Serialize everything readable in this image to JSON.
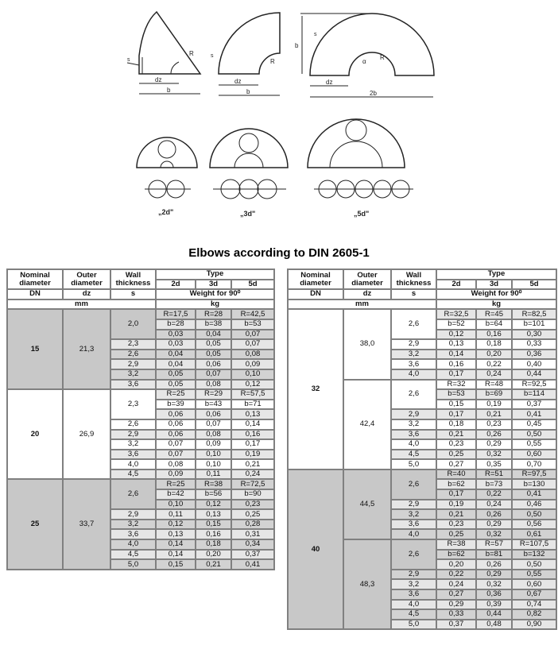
{
  "title": "Elbows according to DIN 2605-1",
  "drawing_labels": {
    "s": "s",
    "R": "R",
    "dz": "dz",
    "b": "b",
    "b2": "2b",
    "alpha": "α",
    "type2": "„2d\"",
    "type3": "„3d\"",
    "type5": "„5d\""
  },
  "header": {
    "nominal": "Nominal diameter",
    "outer": "Outer diameter",
    "wall": "Wall thickness",
    "type": "Type",
    "t2": "2d",
    "t3": "3d",
    "t5": "5d",
    "dn": "DN",
    "dz": "dz",
    "s": "s",
    "weight": "Weight for 90⁰",
    "mm": "mm",
    "kg": "kg"
  },
  "tables": [
    {
      "groups": [
        {
          "dn": "15",
          "shade": "gray",
          "dz_groups": [
            {
              "dz": "21,3",
              "rows": [
                {
                  "s": "2,0",
                  "R": [
                    "R=17,5",
                    "R=28",
                    "R=42,5"
                  ],
                  "b": [
                    "b=28",
                    "b=38",
                    "b=53"
                  ],
                  "w": [
                    "0,03",
                    "0,04",
                    "0,07"
                  ]
                },
                {
                  "s": "2,3",
                  "w": [
                    "0,03",
                    "0,05",
                    "0,07"
                  ]
                },
                {
                  "s": "2,6",
                  "w": [
                    "0,04",
                    "0,05",
                    "0,08"
                  ]
                },
                {
                  "s": "2,9",
                  "w": [
                    "0,04",
                    "0,06",
                    "0,09"
                  ]
                },
                {
                  "s": "3,2",
                  "w": [
                    "0,05",
                    "0,07",
                    "0,10"
                  ]
                },
                {
                  "s": "3,6",
                  "w": [
                    "0,05",
                    "0,08",
                    "0,12"
                  ]
                }
              ]
            }
          ]
        },
        {
          "dn": "20",
          "shade": "white",
          "dz_groups": [
            {
              "dz": "26,9",
              "rows": [
                {
                  "s": "2,3",
                  "R": [
                    "R=25",
                    "R=29",
                    "R=57,5"
                  ],
                  "b": [
                    "b=39",
                    "b=43",
                    "b=71"
                  ],
                  "w": [
                    "0,06",
                    "0,06",
                    "0,13"
                  ]
                },
                {
                  "s": "2,6",
                  "w": [
                    "0,06",
                    "0,07",
                    "0,14"
                  ]
                },
                {
                  "s": "2,9",
                  "w": [
                    "0,06",
                    "0,08",
                    "0,16"
                  ]
                },
                {
                  "s": "3,2",
                  "w": [
                    "0,07",
                    "0,09",
                    "0,17"
                  ]
                },
                {
                  "s": "3,6",
                  "w": [
                    "0,07",
                    "0,10",
                    "0,19"
                  ]
                },
                {
                  "s": "4,0",
                  "w": [
                    "0,08",
                    "0,10",
                    "0,21"
                  ]
                },
                {
                  "s": "4,5",
                  "w": [
                    "0,09",
                    "0,11",
                    "0,24"
                  ]
                }
              ]
            }
          ]
        },
        {
          "dn": "25",
          "shade": "gray",
          "dz_groups": [
            {
              "dz": "33,7",
              "rows": [
                {
                  "s": "2,6",
                  "R": [
                    "R=25",
                    "R=38",
                    "R=72,5"
                  ],
                  "b": [
                    "b=42",
                    "b=56",
                    "b=90"
                  ],
                  "w": [
                    "0,10",
                    "0,12",
                    "0,23"
                  ]
                },
                {
                  "s": "2,9",
                  "w": [
                    "0,11",
                    "0,13",
                    "0,25"
                  ]
                },
                {
                  "s": "3,2",
                  "w": [
                    "0,12",
                    "0,15",
                    "0,28"
                  ]
                },
                {
                  "s": "3,6",
                  "w": [
                    "0,13",
                    "0,16",
                    "0,31"
                  ]
                },
                {
                  "s": "4,0",
                  "w": [
                    "0,14",
                    "0,18",
                    "0,34"
                  ]
                },
                {
                  "s": "4,5",
                  "w": [
                    "0,14",
                    "0,20",
                    "0,37"
                  ]
                },
                {
                  "s": "5,0",
                  "w": [
                    "0,15",
                    "0,21",
                    "0,41"
                  ]
                }
              ]
            }
          ]
        }
      ]
    },
    {
      "groups": [
        {
          "dn": "32",
          "shade": "white",
          "dz_groups": [
            {
              "dz": "38,0",
              "rows": [
                {
                  "s": "2,6",
                  "R": [
                    "R=32,5",
                    "R=45",
                    "R=82,5"
                  ],
                  "b": [
                    "b=52",
                    "b=64",
                    "b=101"
                  ],
                  "w": [
                    "0,12",
                    "0,16",
                    "0,30"
                  ]
                },
                {
                  "s": "2,9",
                  "w": [
                    "0,13",
                    "0,18",
                    "0,33"
                  ]
                },
                {
                  "s": "3,2",
                  "w": [
                    "0,14",
                    "0,20",
                    "0,36"
                  ]
                },
                {
                  "s": "3,6",
                  "w": [
                    "0,16",
                    "0,22",
                    "0,40"
                  ]
                },
                {
                  "s": "4,0",
                  "w": [
                    "0,17",
                    "0,24",
                    "0,44"
                  ]
                }
              ]
            },
            {
              "dz": "42,4",
              "rows": [
                {
                  "s": "2,6",
                  "R": [
                    "R=32",
                    "R=48",
                    "R=92,5"
                  ],
                  "b": [
                    "b=53",
                    "b=69",
                    "b=114"
                  ],
                  "w": [
                    "0,15",
                    "0,19",
                    "0,37"
                  ]
                },
                {
                  "s": "2,9",
                  "w": [
                    "0,17",
                    "0,21",
                    "0,41"
                  ]
                },
                {
                  "s": "3,2",
                  "w": [
                    "0,18",
                    "0,23",
                    "0,45"
                  ]
                },
                {
                  "s": "3,6",
                  "w": [
                    "0,21",
                    "0,26",
                    "0,50"
                  ]
                },
                {
                  "s": "4,0",
                  "w": [
                    "0,23",
                    "0,29",
                    "0,55"
                  ]
                },
                {
                  "s": "4,5",
                  "w": [
                    "0,25",
                    "0,32",
                    "0,60"
                  ]
                },
                {
                  "s": "5,0",
                  "w": [
                    "0,27",
                    "0,35",
                    "0,70"
                  ]
                }
              ]
            }
          ]
        },
        {
          "dn": "40",
          "shade": "gray",
          "dz_groups": [
            {
              "dz": "44,5",
              "rows": [
                {
                  "s": "2,6",
                  "R": [
                    "R=40",
                    "R=51",
                    "R=97,5"
                  ],
                  "b": [
                    "b=62",
                    "b=73",
                    "b=130"
                  ],
                  "w": [
                    "0,17",
                    "0,22",
                    "0,41"
                  ]
                },
                {
                  "s": "2,9",
                  "w": [
                    "0,19",
                    "0,24",
                    "0,46"
                  ]
                },
                {
                  "s": "3,2",
                  "w": [
                    "0,21",
                    "0,26",
                    "0,50"
                  ]
                },
                {
                  "s": "3,6",
                  "w": [
                    "0,23",
                    "0,29",
                    "0,56"
                  ]
                },
                {
                  "s": "4,0",
                  "w": [
                    "0,25",
                    "0,32",
                    "0,61"
                  ]
                }
              ]
            },
            {
              "dz": "48,3",
              "rows": [
                {
                  "s": "2,6",
                  "R": [
                    "R=38",
                    "R=57",
                    "R=107,5"
                  ],
                  "b": [
                    "b=62",
                    "b=81",
                    "b=132"
                  ],
                  "w": [
                    "0,20",
                    "0,26",
                    "0,50"
                  ]
                },
                {
                  "s": "2,9",
                  "w": [
                    "0,22",
                    "0,29",
                    "0,55"
                  ]
                },
                {
                  "s": "3,2",
                  "w": [
                    "0,24",
                    "0,32",
                    "0,60"
                  ]
                },
                {
                  "s": "3,6",
                  "w": [
                    "0,27",
                    "0,36",
                    "0,67"
                  ]
                },
                {
                  "s": "4,0",
                  "w": [
                    "0,29",
                    "0,39",
                    "0,74"
                  ]
                },
                {
                  "s": "4,5",
                  "w": [
                    "0,33",
                    "0,44",
                    "0,82"
                  ]
                },
                {
                  "s": "5,0",
                  "w": [
                    "0,37",
                    "0,48",
                    "0,90"
                  ]
                }
              ]
            }
          ]
        }
      ]
    }
  ]
}
